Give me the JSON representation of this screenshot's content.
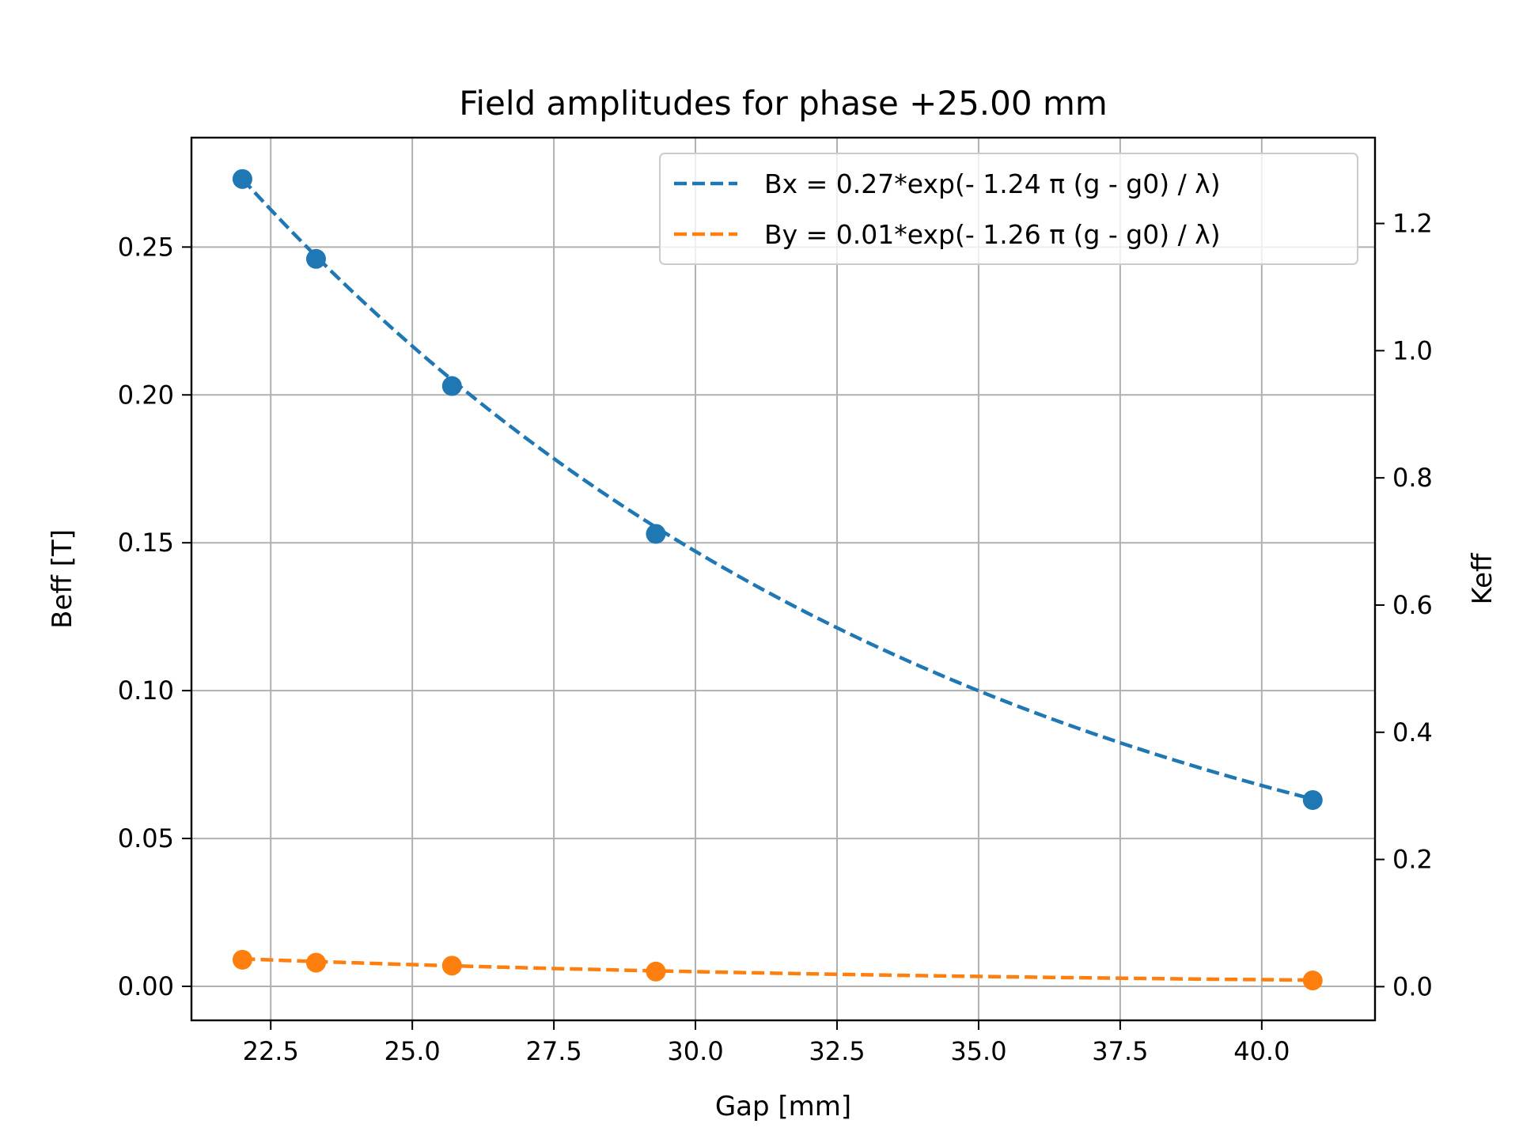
{
  "chart_data": {
    "type": "line",
    "title": "Field amplitudes for phase +25.00 mm",
    "xlabel": "Gap [mm]",
    "ylabel": "Beff [T]",
    "y2label": "Keff",
    "xlim": [
      21.1,
      42.0
    ],
    "ylim": [
      -0.0115,
      0.287
    ],
    "y2lim": [
      -0.053,
      1.335
    ],
    "xticks": [
      "22.5",
      "25.0",
      "27.5",
      "30.0",
      "32.5",
      "35.0",
      "37.5",
      "40.0"
    ],
    "yticks": [
      "0.00",
      "0.05",
      "0.10",
      "0.15",
      "0.20",
      "0.25"
    ],
    "y2ticks": [
      "0.0",
      "0.2",
      "0.4",
      "0.6",
      "0.8",
      "1.0",
      "1.2"
    ],
    "grid": true,
    "legend_position": "top-right",
    "series": [
      {
        "name": "Bx = 0.27*exp(- 1.24 π (g - g0) / λ)",
        "color": "#1f77b4",
        "points_x": [
          22.0,
          23.3,
          25.7,
          29.3,
          40.9
        ],
        "points_y": [
          0.273,
          0.246,
          0.203,
          0.153,
          0.063
        ],
        "fit": {
          "a": 0.273,
          "k": 0.0773,
          "x0": 22.0
        }
      },
      {
        "name": "By = 0.01*exp(- 1.26 π (g - g0) / λ)",
        "color": "#ff7f0e",
        "points_x": [
          22.0,
          23.3,
          25.7,
          29.3,
          40.9
        ],
        "points_y": [
          0.009,
          0.008,
          0.007,
          0.005,
          0.002
        ],
        "fit": {
          "a": 0.0093,
          "k": 0.0785,
          "x0": 22.0
        }
      }
    ]
  }
}
